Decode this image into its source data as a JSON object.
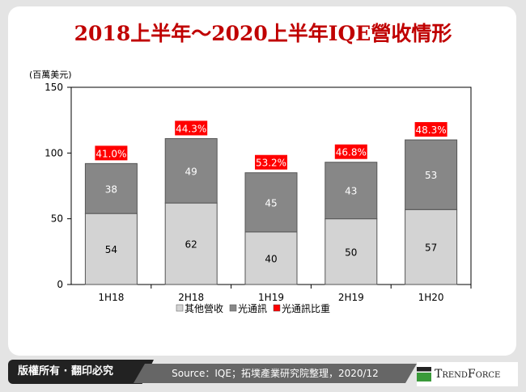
{
  "title": "2018上半年～2020上半年IQE營收情形",
  "footer": {
    "copyright": "版權所有 · 翻印必究",
    "source": "Source：IQE；拓墣產業研究院整理，2020/12",
    "brand": "TrendForce"
  },
  "chart_data": {
    "type": "bar",
    "stacked": true,
    "title": "2018上半年～2020上半年IQE營收情形",
    "ylabel": "(百萬美元)",
    "ylim": [
      0,
      150
    ],
    "yticks": [
      0,
      50,
      100,
      150
    ],
    "categories": [
      "1H18",
      "2H18",
      "1H19",
      "2H19",
      "1H20"
    ],
    "series": [
      {
        "name": "其他營收",
        "values": [
          54,
          62,
          40,
          50,
          57
        ],
        "color": "#d3d3d3"
      },
      {
        "name": "光通訊",
        "values": [
          38,
          49,
          45,
          43,
          53
        ],
        "color": "#878787"
      }
    ],
    "ratio": {
      "name": "光通訊比重",
      "labels": [
        "41.0%",
        "44.3%",
        "53.2%",
        "46.8%",
        "48.3%"
      ],
      "color": "#ff0000"
    },
    "legend": "bottom"
  }
}
